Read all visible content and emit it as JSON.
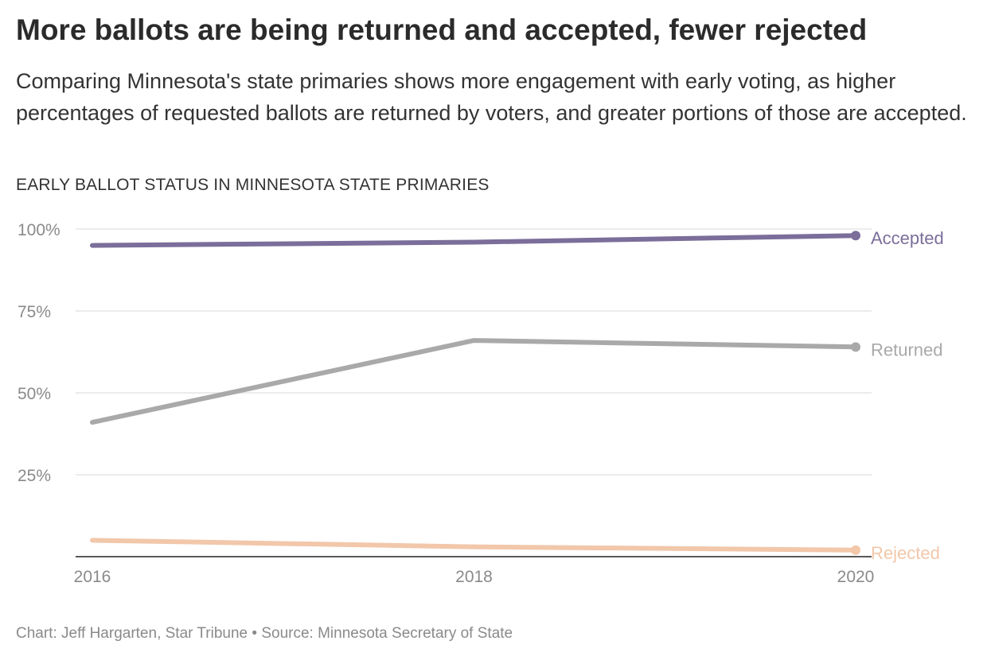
{
  "header": {
    "headline": "More ballots are being returned and accepted, fewer rejected",
    "dek": "Comparing Minnesota's state primaries shows more engagement with early voting, as higher percentages of requested ballots are returned by voters, and greater portions of those are accepted.",
    "kicker": "EARLY BALLOT STATUS IN MINNESOTA STATE PRIMARIES"
  },
  "footer": {
    "credit": "Chart: Jeff Hargarten, Star Tribune • Source: Minnesota Secretary of State"
  },
  "chart_data": {
    "type": "line",
    "title": "EARLY BALLOT STATUS IN MINNESOTA STATE PRIMARIES",
    "xlabel": "",
    "ylabel": "",
    "x": [
      "2016",
      "2018",
      "2020"
    ],
    "ylim": [
      0,
      100
    ],
    "yticks": [
      25,
      50,
      75,
      100
    ],
    "ytick_labels": [
      "25%",
      "50%",
      "75%",
      "100%"
    ],
    "grid": true,
    "legend": "direct labels at line ends",
    "series": [
      {
        "name": "Accepted",
        "values": [
          95,
          96,
          98
        ],
        "color": "#7b6e9a"
      },
      {
        "name": "Returned",
        "values": [
          41,
          66,
          64
        ],
        "color": "#a9a9a9"
      },
      {
        "name": "Rejected",
        "values": [
          5,
          3,
          2
        ],
        "color": "#f2c7aa"
      }
    ]
  }
}
